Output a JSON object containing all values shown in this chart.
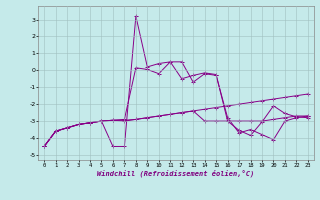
{
  "xlabel": "Windchill (Refroidissement éolien,°C)",
  "xlim": [
    -0.5,
    23.5
  ],
  "ylim": [
    -5.3,
    3.8
  ],
  "yticks": [
    -5,
    -4,
    -3,
    -2,
    -1,
    0,
    1,
    2,
    3
  ],
  "xticks": [
    0,
    1,
    2,
    3,
    4,
    5,
    6,
    7,
    8,
    9,
    10,
    11,
    12,
    13,
    14,
    15,
    16,
    17,
    18,
    19,
    20,
    21,
    22,
    23
  ],
  "background_color": "#c5eaea",
  "grid_color": "#a0c0c0",
  "line_color": "#880088",
  "series1": [
    -4.5,
    -3.6,
    -3.4,
    -3.2,
    -3.1,
    -3.0,
    -4.5,
    -4.5,
    3.2,
    0.2,
    0.4,
    0.5,
    0.5,
    -0.7,
    -0.2,
    -0.3,
    -2.8,
    -3.7,
    -3.5,
    -3.8,
    -4.1,
    -3.0,
    -2.8,
    -2.7
  ],
  "series2": [
    -4.5,
    -3.6,
    -3.4,
    -3.2,
    -3.1,
    -3.0,
    -2.95,
    -3.0,
    -2.9,
    -2.8,
    -2.7,
    -2.6,
    -2.5,
    -2.4,
    -2.3,
    -2.2,
    -2.1,
    -2.0,
    -1.9,
    -1.8,
    -1.7,
    -1.6,
    -1.5,
    -1.4
  ],
  "series3": [
    -4.5,
    -3.6,
    -3.4,
    -3.2,
    -3.1,
    -3.0,
    -2.95,
    -2.9,
    0.15,
    0.05,
    -0.2,
    0.5,
    -0.5,
    -0.3,
    -0.15,
    -0.25,
    -3.0,
    -3.55,
    -3.85,
    -3.05,
    -2.1,
    -2.55,
    -2.75,
    -2.8
  ],
  "series4": [
    -4.5,
    -3.6,
    -3.4,
    -3.2,
    -3.1,
    -3.0,
    -2.95,
    -2.95,
    -2.9,
    -2.8,
    -2.7,
    -2.6,
    -2.5,
    -2.4,
    -3.0,
    -3.0,
    -3.0,
    -3.0,
    -3.0,
    -3.0,
    -2.9,
    -2.8,
    -2.7,
    -2.7
  ]
}
